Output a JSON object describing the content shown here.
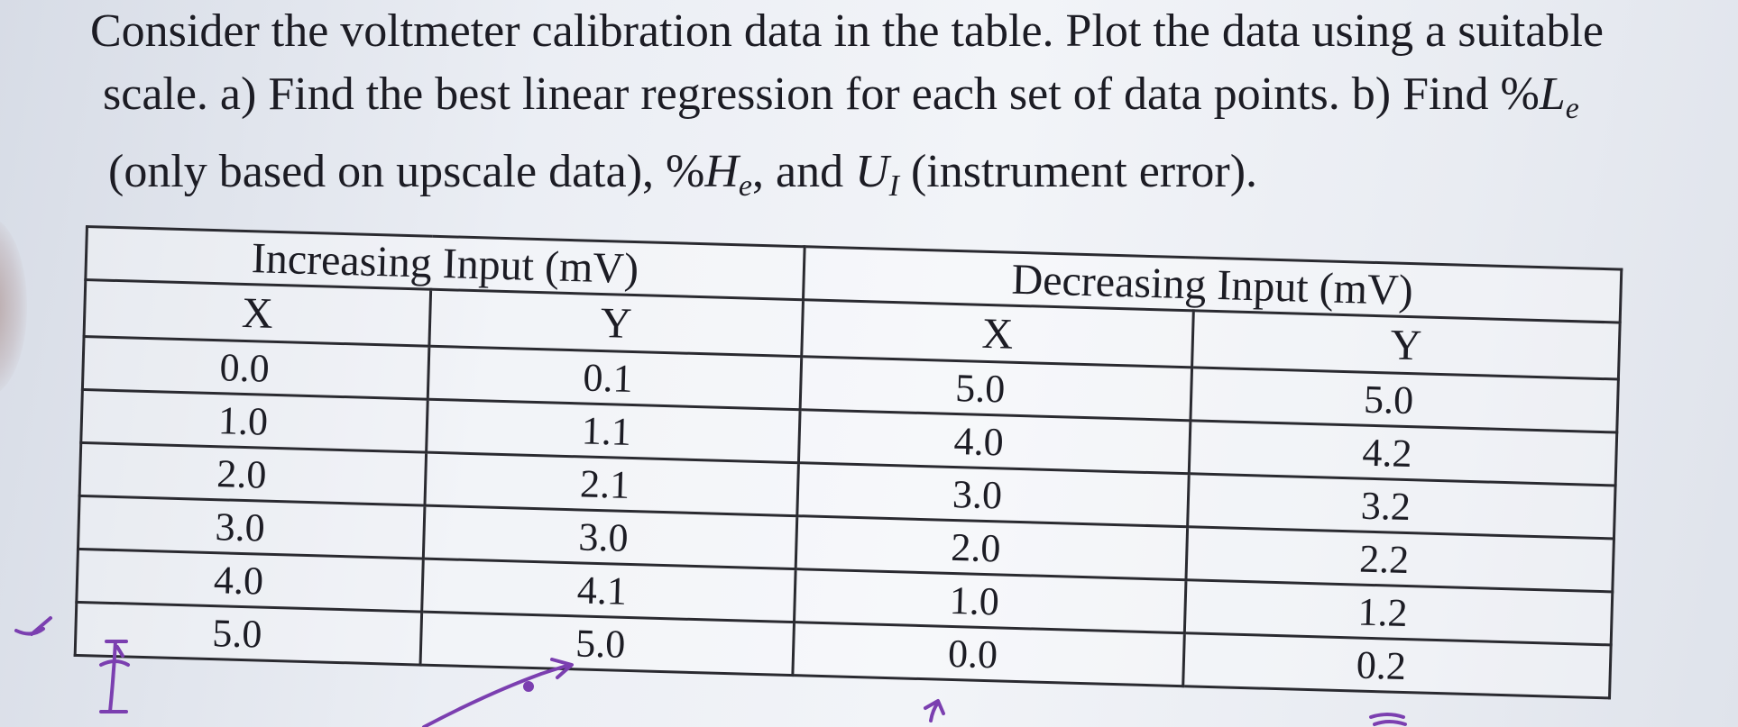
{
  "problem": {
    "line1": "Consider the voltmeter calibration data in the table. Plot the data using a suitable",
    "line2_a": "scale. a) Find the best linear regression for each set of data points. b) Find %",
    "line2_L": "L",
    "line2_sub": "e",
    "line3_a": "(only based on upscale data), %",
    "line3_H": "H",
    "line3_Hsub": "e",
    "line3_b": ", and ",
    "line3_U": "U",
    "line3_Usub": "I",
    "line3_c": " (instrument error)."
  },
  "table": {
    "increasing_header": "Increasing Input (mV)",
    "decreasing_header": "Decreasing Input (mV)",
    "x_label": "X",
    "y_label": "Y",
    "rows": [
      {
        "inc_x": "0.0",
        "inc_y": "0.1",
        "dec_x": "5.0",
        "dec_y": "5.0"
      },
      {
        "inc_x": "1.0",
        "inc_y": "1.1",
        "dec_x": "4.0",
        "dec_y": "4.2"
      },
      {
        "inc_x": "2.0",
        "inc_y": "2.1",
        "dec_x": "3.0",
        "dec_y": "3.2"
      },
      {
        "inc_x": "3.0",
        "inc_y": "3.0",
        "dec_x": "2.0",
        "dec_y": "2.2"
      },
      {
        "inc_x": "4.0",
        "inc_y": "4.1",
        "dec_x": "1.0",
        "dec_y": "1.2"
      },
      {
        "inc_x": "5.0",
        "inc_y": "5.0",
        "dec_x": "0.0",
        "dec_y": "0.2"
      }
    ]
  },
  "annotation_color": "#7b3fb0"
}
